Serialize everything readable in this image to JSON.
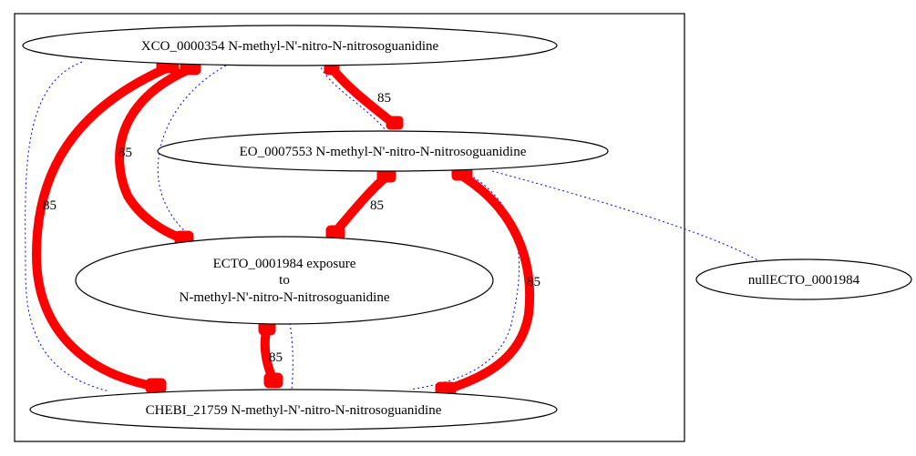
{
  "colors": {
    "strong_edge": "#ff0000",
    "weak_edge": "#0000ff",
    "node_stroke": "#000000",
    "background": "#ffffff"
  },
  "nodes": [
    {
      "id": "xco",
      "lines": [
        "XCO_0000354 N-methyl-N'-nitro-N-nitrosoguanidine"
      ]
    },
    {
      "id": "eo",
      "lines": [
        "EO_0007553 N-methyl-N'-nitro-N-nitrosoguanidine"
      ]
    },
    {
      "id": "ecto",
      "lines": [
        "ECTO_0001984 exposure",
        "to",
        "N-methyl-N'-nitro-N-nitrosoguanidine"
      ]
    },
    {
      "id": "chebi",
      "lines": [
        "CHEBI_21759 N-methyl-N'-nitro-N-nitrosoguanidine"
      ]
    },
    {
      "id": "null",
      "lines": [
        "nullECTO_0001984"
      ]
    }
  ],
  "strong_edges": [
    {
      "from": "xco",
      "to": "eo",
      "label": "85"
    },
    {
      "from": "xco",
      "to": "ecto",
      "label": "85"
    },
    {
      "from": "xco",
      "to": "chebi",
      "label": "85"
    },
    {
      "from": "eo",
      "to": "ecto",
      "label": "85"
    },
    {
      "from": "eo",
      "to": "chebi",
      "label": "85"
    },
    {
      "from": "ecto",
      "to": "chebi",
      "label": "85"
    }
  ],
  "weak_edges": [
    {
      "from": "xco",
      "to": "eo"
    },
    {
      "from": "xco",
      "to": "ecto"
    },
    {
      "from": "xco",
      "to": "chebi"
    },
    {
      "from": "eo",
      "to": "chebi"
    },
    {
      "from": "eo",
      "to": "null"
    },
    {
      "from": "ecto",
      "to": "chebi"
    }
  ]
}
